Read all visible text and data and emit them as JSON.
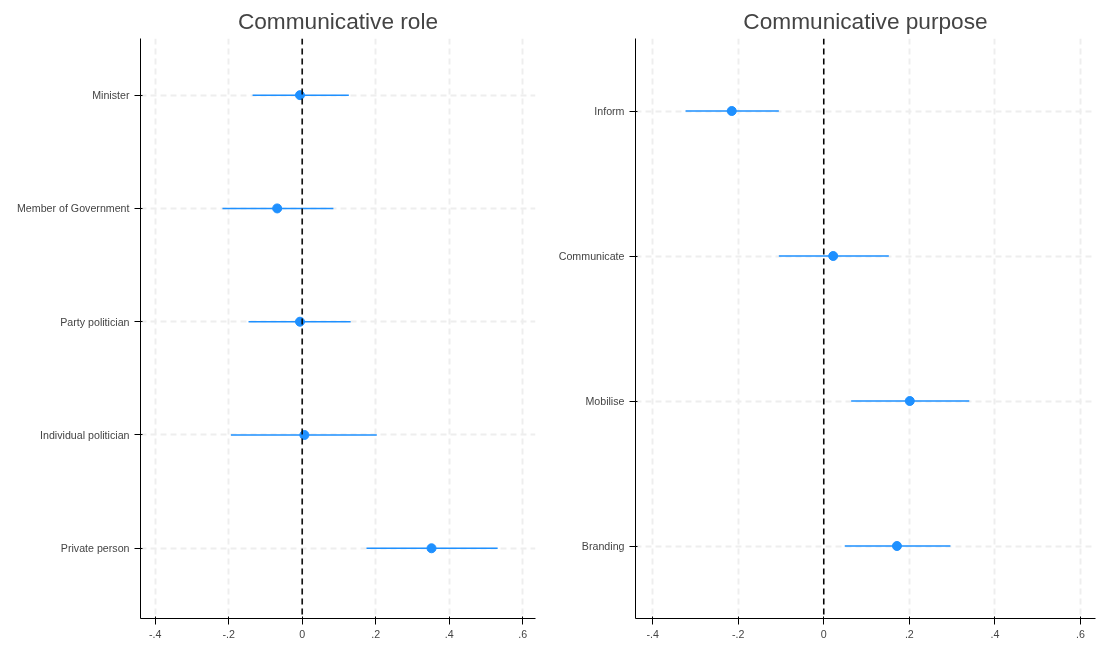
{
  "chart_data": [
    {
      "type": "scatter",
      "title": "Communicative role",
      "orientation": "horizontal",
      "categories": [
        "Minister",
        "Member of Government",
        "Party politician",
        "Individual politician",
        "Private person"
      ],
      "color": "#1e90ff",
      "values": [
        -0.006,
        -0.068,
        -0.006,
        0.006,
        0.352
      ],
      "errors": [
        [
          -0.135,
          0.127
        ],
        [
          -0.217,
          0.085
        ],
        [
          -0.146,
          0.132
        ],
        [
          -0.194,
          0.203
        ],
        [
          0.175,
          0.532
        ]
      ],
      "xlim": [
        -0.44,
        0.635
      ],
      "xticks": [
        {
          "value": -0.4,
          "label": "-.4"
        },
        {
          "value": -0.2,
          "label": "-.2"
        },
        0,
        {
          "value": 0.2,
          "label": ".2"
        },
        {
          "value": 0.4,
          "label": ".4"
        },
        {
          "value": 0.6,
          "label": ".6"
        }
      ],
      "ref_lines": [
        {
          "axis": "x",
          "value": 0,
          "color": "#000000",
          "line_style": "dashed"
        }
      ],
      "grid": true,
      "marker": "circle"
    },
    {
      "type": "scatter",
      "title": "Communicative purpose",
      "orientation": "horizontal",
      "categories": [
        "Inform",
        "Communicate",
        "Mobilise",
        "Branding"
      ],
      "color": "#1e90ff",
      "values": [
        -0.215,
        0.022,
        0.201,
        0.171
      ],
      "errors": [
        [
          -0.323,
          -0.105
        ],
        [
          -0.105,
          0.152
        ],
        [
          0.064,
          0.34
        ],
        [
          0.049,
          0.296
        ]
      ],
      "xlim": [
        -0.44,
        0.635
      ],
      "xticks": [
        {
          "value": -0.4,
          "label": "-.4"
        },
        {
          "value": -0.2,
          "label": "-.2"
        },
        0,
        {
          "value": 0.2,
          "label": ".2"
        },
        {
          "value": 0.4,
          "label": ".4"
        },
        {
          "value": 0.6,
          "label": ".6"
        }
      ],
      "ref_lines": [
        {
          "axis": "x",
          "value": 0,
          "color": "#000000",
          "line_style": "dashed"
        }
      ],
      "grid": true,
      "marker": "circle"
    }
  ]
}
